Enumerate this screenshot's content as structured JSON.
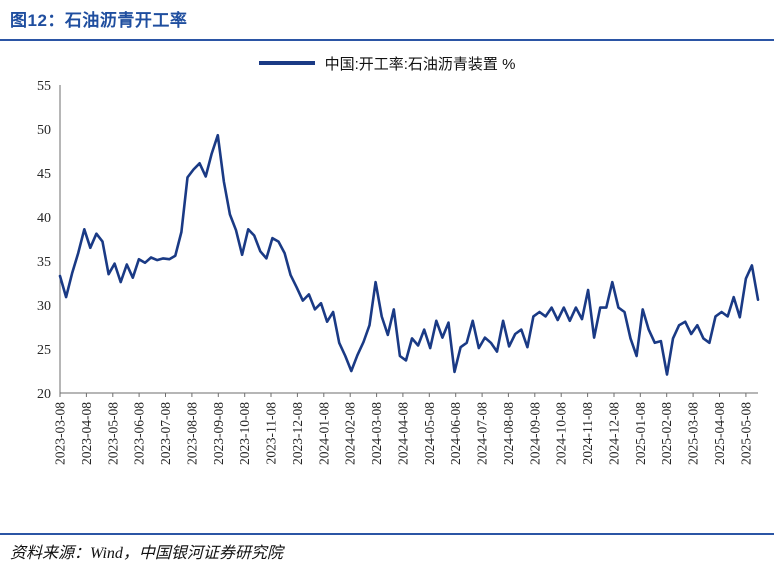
{
  "figure": {
    "title": "图12：石油沥青开工率",
    "source": "资料来源：Wind，中国银河证券研究院"
  },
  "colors": {
    "title_blue": "#1F4E9F",
    "rule_blue": "#2B55A5",
    "line_navy": "#1A3A85",
    "axis_gray": "#6e6e6e",
    "tick_text": "#262626"
  },
  "chart_data": {
    "type": "line",
    "title": "",
    "frequency": "weekly",
    "legend_position": "top-center",
    "grid": false,
    "ylim": [
      20,
      55
    ],
    "yticks": [
      20,
      25,
      30,
      35,
      40,
      45,
      50,
      55
    ],
    "colors": {
      "line": "#1A3A85"
    },
    "x_labels": [
      "2023-03-08",
      "2023-04-08",
      "2023-05-08",
      "2023-06-08",
      "2023-07-08",
      "2023-08-08",
      "2023-09-08",
      "2023-10-08",
      "2023-11-08",
      "2023-12-08",
      "2024-01-08",
      "2024-02-08",
      "2024-03-08",
      "2024-04-08",
      "2024-05-08",
      "2024-06-08",
      "2024-07-08",
      "2024-08-08",
      "2024-09-08",
      "2024-10-08",
      "2024-11-08",
      "2024-12-08",
      "2025-01-08",
      "2025-02-08",
      "2025-03-08",
      "2025-04-08",
      "2025-05-08"
    ],
    "series": [
      {
        "name": "中国:开工率:石油沥青装置 %",
        "values": [
          33.3,
          30.9,
          33.6,
          35.9,
          38.6,
          36.5,
          38.1,
          37.2,
          33.5,
          34.7,
          32.6,
          34.6,
          33.1,
          35.2,
          34.8,
          35.4,
          35.1,
          35.3,
          35.2,
          35.6,
          38.3,
          44.5,
          45.4,
          46.1,
          44.6,
          47.2,
          49.3,
          44.0,
          40.3,
          38.5,
          35.7,
          38.6,
          37.9,
          36.1,
          35.3,
          37.6,
          37.2,
          35.9,
          33.4,
          32.0,
          30.5,
          31.2,
          29.5,
          30.2,
          28.1,
          29.2,
          25.7,
          24.2,
          22.5,
          24.3,
          25.8,
          27.7,
          32.6,
          28.7,
          26.6,
          29.5,
          24.2,
          23.7,
          26.2,
          25.4,
          27.2,
          25.1,
          28.2,
          26.3,
          28.0,
          22.4,
          25.2,
          25.7,
          28.2,
          25.1,
          26.3,
          25.7,
          24.7,
          28.2,
          25.3,
          26.7,
          27.2,
          25.2,
          28.7,
          29.2,
          28.7,
          29.7,
          28.3,
          29.7,
          28.2,
          29.7,
          28.4,
          31.7,
          26.3,
          29.7,
          29.7,
          32.6,
          29.7,
          29.2,
          26.2,
          24.2,
          29.5,
          27.2,
          25.7,
          25.9,
          22.1,
          26.2,
          27.7,
          28.1,
          26.7,
          27.7,
          26.2,
          25.7,
          28.7,
          29.2,
          28.7,
          30.9,
          28.6,
          33.0,
          34.5,
          30.6
        ]
      }
    ]
  }
}
